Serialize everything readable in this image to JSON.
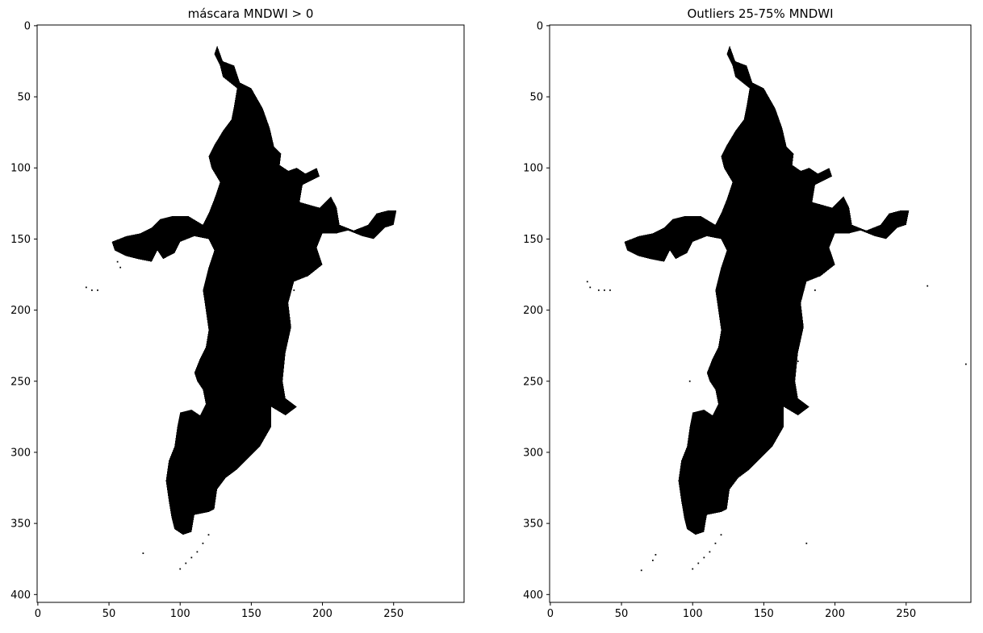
{
  "chart_data": [
    {
      "type": "heatmap",
      "title": "máscara MNDWI > 0",
      "xlabel": "",
      "ylabel": "",
      "xlim": [
        -0.5,
        299.5
      ],
      "ylim": [
        405.5,
        -0.5
      ],
      "xticks": [
        0,
        50,
        100,
        150,
        200,
        250
      ],
      "yticks": [
        0,
        50,
        100,
        150,
        200,
        250,
        300,
        350,
        400
      ],
      "colormap": {
        "0": "#ffffff",
        "1": "#000000"
      },
      "grid": false,
      "mask_outline": [
        [
          126,
          14
        ],
        [
          130,
          25
        ],
        [
          138,
          28
        ],
        [
          142,
          40
        ],
        [
          150,
          44
        ],
        [
          158,
          58
        ],
        [
          163,
          72
        ],
        [
          166,
          85
        ],
        [
          171,
          90
        ],
        [
          170,
          98
        ],
        [
          176,
          102
        ],
        [
          182,
          100
        ],
        [
          188,
          104
        ],
        [
          196,
          100
        ],
        [
          198,
          106
        ],
        [
          186,
          112
        ],
        [
          184,
          124
        ],
        [
          198,
          128
        ],
        [
          206,
          120
        ],
        [
          210,
          128
        ],
        [
          212,
          140
        ],
        [
          222,
          144
        ],
        [
          232,
          140
        ],
        [
          238,
          132
        ],
        [
          246,
          130
        ],
        [
          252,
          130
        ],
        [
          250,
          140
        ],
        [
          244,
          142
        ],
        [
          236,
          150
        ],
        [
          228,
          148
        ],
        [
          218,
          144
        ],
        [
          210,
          146
        ],
        [
          200,
          146
        ],
        [
          196,
          156
        ],
        [
          200,
          168
        ],
        [
          190,
          176
        ],
        [
          180,
          180
        ],
        [
          176,
          195
        ],
        [
          178,
          212
        ],
        [
          174,
          230
        ],
        [
          172,
          250
        ],
        [
          174,
          262
        ],
        [
          182,
          268
        ],
        [
          174,
          274
        ],
        [
          164,
          268
        ],
        [
          164,
          282
        ],
        [
          156,
          296
        ],
        [
          148,
          304
        ],
        [
          140,
          312
        ],
        [
          132,
          318
        ],
        [
          126,
          326
        ],
        [
          124,
          340
        ],
        [
          120,
          342
        ],
        [
          110,
          344
        ],
        [
          108,
          356
        ],
        [
          102,
          358
        ],
        [
          96,
          354
        ],
        [
          94,
          346
        ],
        [
          92,
          334
        ],
        [
          90,
          320
        ],
        [
          92,
          306
        ],
        [
          96,
          296
        ],
        [
          98,
          282
        ],
        [
          100,
          272
        ],
        [
          108,
          270
        ],
        [
          114,
          274
        ],
        [
          118,
          266
        ],
        [
          116,
          256
        ],
        [
          112,
          250
        ],
        [
          110,
          244
        ],
        [
          114,
          234
        ],
        [
          118,
          226
        ],
        [
          120,
          214
        ],
        [
          118,
          200
        ],
        [
          116,
          186
        ],
        [
          120,
          170
        ],
        [
          124,
          158
        ],
        [
          120,
          150
        ],
        [
          110,
          148
        ],
        [
          100,
          152
        ],
        [
          96,
          160
        ],
        [
          88,
          164
        ],
        [
          84,
          158
        ],
        [
          80,
          166
        ],
        [
          70,
          164
        ],
        [
          62,
          162
        ],
        [
          54,
          158
        ],
        [
          52,
          152
        ],
        [
          62,
          148
        ],
        [
          72,
          146
        ],
        [
          80,
          142
        ],
        [
          86,
          136
        ],
        [
          94,
          134
        ],
        [
          106,
          134
        ],
        [
          116,
          140
        ],
        [
          120,
          132
        ],
        [
          124,
          122
        ],
        [
          128,
          110
        ],
        [
          122,
          100
        ],
        [
          120,
          92
        ],
        [
          124,
          84
        ],
        [
          130,
          74
        ],
        [
          136,
          66
        ],
        [
          138,
          56
        ],
        [
          140,
          44
        ],
        [
          130,
          36
        ],
        [
          128,
          28
        ],
        [
          124,
          20
        ]
      ],
      "specks": [
        [
          74,
          371
        ],
        [
          100,
          382
        ],
        [
          104,
          378
        ],
        [
          108,
          374
        ],
        [
          112,
          370
        ],
        [
          116,
          364
        ],
        [
          120,
          358
        ],
        [
          34,
          184
        ],
        [
          38,
          186
        ],
        [
          42,
          186
        ],
        [
          180,
          186
        ],
        [
          56,
          166
        ],
        [
          58,
          170
        ]
      ]
    },
    {
      "type": "heatmap",
      "title": "Outliers 25-75% MNDWI",
      "xlabel": "",
      "ylabel": "",
      "xlim": [
        -0.5,
        295.5
      ],
      "ylim": [
        405.5,
        -0.5
      ],
      "xticks": [
        0,
        50,
        100,
        150,
        200,
        250
      ],
      "yticks": [
        0,
        50,
        100,
        150,
        200,
        250,
        300,
        350,
        400
      ],
      "colormap": {
        "0": "#ffffff",
        "1": "#000000"
      },
      "grid": false,
      "mask_outline": [
        [
          126,
          14
        ],
        [
          130,
          25
        ],
        [
          138,
          28
        ],
        [
          142,
          40
        ],
        [
          150,
          44
        ],
        [
          158,
          58
        ],
        [
          163,
          72
        ],
        [
          166,
          85
        ],
        [
          171,
          90
        ],
        [
          170,
          98
        ],
        [
          176,
          102
        ],
        [
          182,
          100
        ],
        [
          188,
          104
        ],
        [
          196,
          100
        ],
        [
          198,
          106
        ],
        [
          186,
          112
        ],
        [
          184,
          124
        ],
        [
          198,
          128
        ],
        [
          206,
          120
        ],
        [
          210,
          128
        ],
        [
          212,
          140
        ],
        [
          222,
          144
        ],
        [
          232,
          140
        ],
        [
          238,
          132
        ],
        [
          246,
          130
        ],
        [
          252,
          130
        ],
        [
          250,
          140
        ],
        [
          244,
          142
        ],
        [
          236,
          150
        ],
        [
          228,
          148
        ],
        [
          218,
          144
        ],
        [
          210,
          146
        ],
        [
          200,
          146
        ],
        [
          196,
          156
        ],
        [
          200,
          168
        ],
        [
          190,
          176
        ],
        [
          180,
          180
        ],
        [
          176,
          195
        ],
        [
          178,
          212
        ],
        [
          174,
          230
        ],
        [
          172,
          250
        ],
        [
          174,
          262
        ],
        [
          182,
          268
        ],
        [
          174,
          274
        ],
        [
          164,
          268
        ],
        [
          164,
          282
        ],
        [
          156,
          296
        ],
        [
          148,
          304
        ],
        [
          140,
          312
        ],
        [
          132,
          318
        ],
        [
          126,
          326
        ],
        [
          124,
          340
        ],
        [
          120,
          342
        ],
        [
          110,
          344
        ],
        [
          108,
          356
        ],
        [
          102,
          358
        ],
        [
          96,
          354
        ],
        [
          94,
          346
        ],
        [
          92,
          334
        ],
        [
          90,
          320
        ],
        [
          92,
          306
        ],
        [
          96,
          296
        ],
        [
          98,
          282
        ],
        [
          100,
          272
        ],
        [
          108,
          270
        ],
        [
          114,
          274
        ],
        [
          118,
          266
        ],
        [
          116,
          256
        ],
        [
          112,
          250
        ],
        [
          110,
          244
        ],
        [
          114,
          234
        ],
        [
          118,
          226
        ],
        [
          120,
          214
        ],
        [
          118,
          200
        ],
        [
          116,
          186
        ],
        [
          120,
          170
        ],
        [
          124,
          158
        ],
        [
          120,
          150
        ],
        [
          110,
          148
        ],
        [
          100,
          152
        ],
        [
          96,
          160
        ],
        [
          88,
          164
        ],
        [
          84,
          158
        ],
        [
          80,
          166
        ],
        [
          70,
          164
        ],
        [
          62,
          162
        ],
        [
          54,
          158
        ],
        [
          52,
          152
        ],
        [
          62,
          148
        ],
        [
          72,
          146
        ],
        [
          80,
          142
        ],
        [
          86,
          136
        ],
        [
          94,
          134
        ],
        [
          106,
          134
        ],
        [
          116,
          140
        ],
        [
          120,
          132
        ],
        [
          124,
          122
        ],
        [
          128,
          110
        ],
        [
          122,
          100
        ],
        [
          120,
          92
        ],
        [
          124,
          84
        ],
        [
          130,
          74
        ],
        [
          136,
          66
        ],
        [
          138,
          56
        ],
        [
          140,
          44
        ],
        [
          130,
          36
        ],
        [
          128,
          28
        ],
        [
          124,
          20
        ]
      ],
      "specks": [
        [
          100,
          382
        ],
        [
          104,
          378
        ],
        [
          108,
          374
        ],
        [
          112,
          370
        ],
        [
          116,
          364
        ],
        [
          120,
          358
        ],
        [
          26,
          180
        ],
        [
          28,
          184
        ],
        [
          34,
          186
        ],
        [
          38,
          186
        ],
        [
          42,
          186
        ],
        [
          186,
          186
        ],
        [
          172,
          246
        ],
        [
          174,
          236
        ],
        [
          98,
          250
        ],
        [
          74,
          372
        ],
        [
          72,
          376
        ],
        [
          64,
          383
        ],
        [
          180,
          364
        ],
        [
          265,
          183
        ],
        [
          292,
          238
        ]
      ]
    }
  ]
}
